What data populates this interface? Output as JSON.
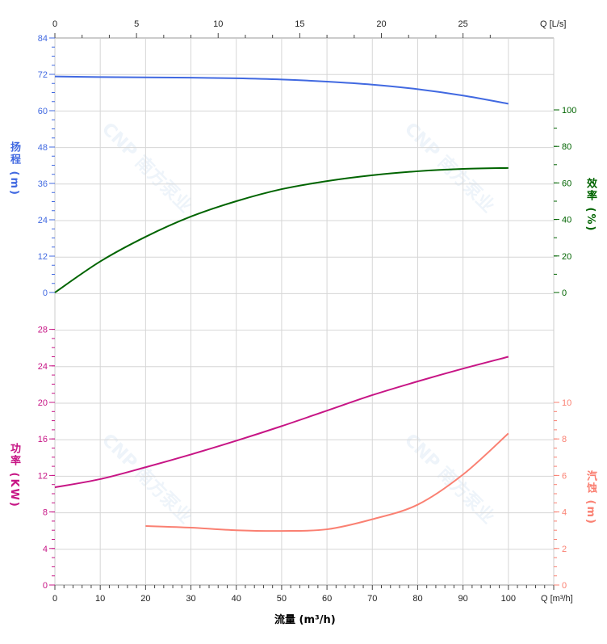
{
  "chart_data": {
    "type": "line",
    "x_axis_bottom": {
      "label": "流量 (m³/h)",
      "unit_label": "Q [m³/h]",
      "range": [
        0,
        110
      ],
      "ticks": [
        0,
        10,
        20,
        30,
        40,
        50,
        60,
        70,
        80,
        90,
        100
      ]
    },
    "x_axis_top": {
      "unit_label": "Q [L/s]",
      "range": [
        0,
        30.56
      ],
      "ticks": [
        0,
        5,
        10,
        15,
        20,
        25
      ]
    },
    "axes": {
      "head": {
        "label": "扬程 (m)",
        "range": [
          0,
          84
        ],
        "ticks": [
          0,
          12,
          24,
          36,
          48,
          60,
          72,
          84
        ],
        "color": "#4169e1"
      },
      "efficiency": {
        "label": "效率 (%)",
        "range": [
          0,
          100
        ],
        "ticks": [
          0,
          20,
          40,
          60,
          80,
          100
        ],
        "color": "#006400"
      },
      "power": {
        "label": "功率 (KW)",
        "range": [
          0,
          28
        ],
        "ticks": [
          0,
          4,
          8,
          12,
          16,
          20,
          24,
          28
        ],
        "color": "#c71585"
      },
      "npsh": {
        "label": "汽蚀 (m)",
        "range": [
          0,
          10
        ],
        "ticks": [
          0,
          2,
          4,
          6,
          8,
          10
        ],
        "color": "#fa8072"
      }
    },
    "series": [
      {
        "axis": "head",
        "x": [
          0,
          10,
          20,
          30,
          40,
          50,
          60,
          70,
          80,
          90,
          100
        ],
        "y": [
          71.3,
          71.1,
          71.0,
          70.9,
          70.7,
          70.3,
          69.6,
          68.6,
          67.1,
          65.0,
          62.3
        ]
      },
      {
        "axis": "efficiency",
        "x": [
          0,
          10,
          20,
          30,
          40,
          50,
          60,
          70,
          80,
          90,
          100
        ],
        "y": [
          0,
          17,
          30.5,
          41.6,
          50,
          56.6,
          61,
          64.2,
          66.4,
          67.7,
          68.2
        ]
      },
      {
        "axis": "power",
        "x": [
          0,
          10,
          20,
          30,
          40,
          50,
          60,
          70,
          80,
          90,
          100
        ],
        "y": [
          10.7,
          11.6,
          12.9,
          14.3,
          15.8,
          17.4,
          19.1,
          20.8,
          22.3,
          23.7,
          25.0
        ]
      },
      {
        "axis": "npsh",
        "x": [
          20,
          30,
          40,
          50,
          60,
          70,
          80,
          90,
          100
        ],
        "y": [
          3.23,
          3.14,
          3.0,
          2.96,
          3.05,
          3.6,
          4.4,
          6.05,
          8.3
        ]
      }
    ],
    "grid": true,
    "watermark": "CNP 南方泵业"
  }
}
